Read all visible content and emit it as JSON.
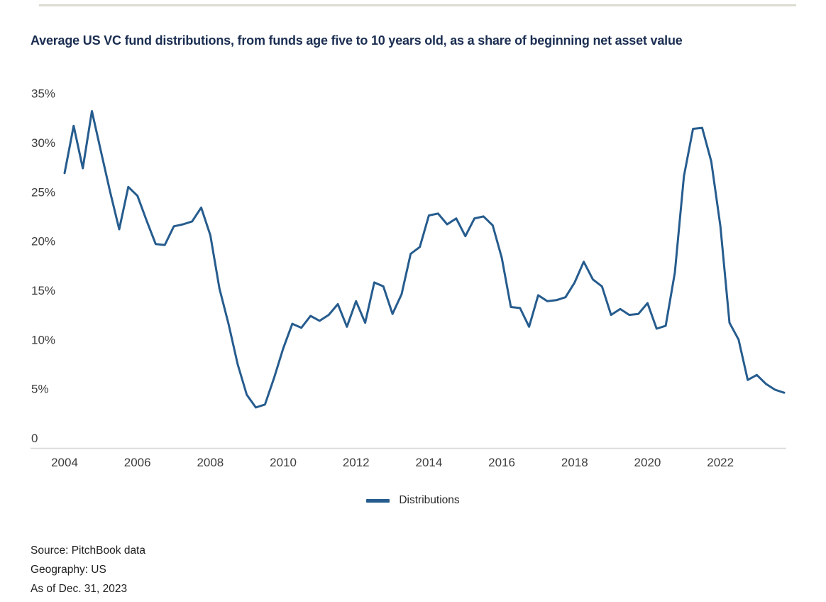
{
  "title": {
    "text": "Average US VC fund distributions, from funds age five to 10 years old, as a share of beginning net asset value"
  },
  "legend": {
    "label": "Distributions"
  },
  "footer": {
    "source": "Source: PitchBook data",
    "geography": "Geography: US",
    "as_of": "As of Dec. 31, 2023"
  },
  "colors": {
    "line": "#265c8e",
    "title_text": "#1b2e52",
    "axis_text": "#3d3d3d",
    "baseline": "#d8d8d8",
    "top_rule": "#dcdcd2"
  },
  "chart_data": {
    "type": "line",
    "title": "Average US VC fund distributions, from funds age five to 10 years old, as a share of beginning net asset value",
    "xlabel": "",
    "ylabel": "",
    "unit": "%",
    "frequency": "quarterly",
    "xlim": [
      2004.0,
      2023.75
    ],
    "ylim": [
      0,
      35
    ],
    "grid": false,
    "legend_position": "bottom",
    "x_ticks": [
      2004,
      2006,
      2008,
      2010,
      2012,
      2014,
      2016,
      2018,
      2020,
      2022
    ],
    "y_ticks": [
      {
        "value": 35,
        "label": "35%"
      },
      {
        "value": 30,
        "label": "30%"
      },
      {
        "value": 25,
        "label": "25%"
      },
      {
        "value": 20,
        "label": "20%"
      },
      {
        "value": 15,
        "label": "15%"
      },
      {
        "value": 10,
        "label": "10%"
      },
      {
        "value": 5,
        "label": "5%"
      },
      {
        "value": 0,
        "label": "0"
      }
    ],
    "x": [
      2004.0,
      2004.25,
      2004.5,
      2004.75,
      2005.0,
      2005.25,
      2005.5,
      2005.75,
      2006.0,
      2006.25,
      2006.5,
      2006.75,
      2007.0,
      2007.25,
      2007.5,
      2007.75,
      2008.0,
      2008.25,
      2008.5,
      2008.75,
      2009.0,
      2009.25,
      2009.5,
      2009.75,
      2010.0,
      2010.25,
      2010.5,
      2010.75,
      2011.0,
      2011.25,
      2011.5,
      2011.75,
      2012.0,
      2012.25,
      2012.5,
      2012.75,
      2013.0,
      2013.25,
      2013.5,
      2013.75,
      2014.0,
      2014.25,
      2014.5,
      2014.75,
      2015.0,
      2015.25,
      2015.5,
      2015.75,
      2016.0,
      2016.25,
      2016.5,
      2016.75,
      2017.0,
      2017.25,
      2017.5,
      2017.75,
      2018.0,
      2018.25,
      2018.5,
      2018.75,
      2019.0,
      2019.25,
      2019.5,
      2019.75,
      2020.0,
      2020.25,
      2020.5,
      2020.75,
      2021.0,
      2021.25,
      2021.5,
      2021.75,
      2022.0,
      2022.25,
      2022.5,
      2022.75,
      2023.0,
      2023.25,
      2023.5,
      2023.75
    ],
    "series": [
      {
        "name": "Distributions",
        "values": [
          26.9,
          31.7,
          27.4,
          33.2,
          29.1,
          25.0,
          21.2,
          25.5,
          24.6,
          22.1,
          19.7,
          19.6,
          21.5,
          21.7,
          22.0,
          23.4,
          20.6,
          15.2,
          11.6,
          7.5,
          4.4,
          3.1,
          3.4,
          6.1,
          9.1,
          11.6,
          11.2,
          12.4,
          11.9,
          12.5,
          13.6,
          11.3,
          13.9,
          11.7,
          15.8,
          15.4,
          12.6,
          14.6,
          18.7,
          19.4,
          22.6,
          22.8,
          21.7,
          22.3,
          20.5,
          22.3,
          22.5,
          21.6,
          18.3,
          13.3,
          13.2,
          11.3,
          14.5,
          13.9,
          14.0,
          14.3,
          15.8,
          17.9,
          16.1,
          15.4,
          12.5,
          13.1,
          12.5,
          12.6,
          13.7,
          11.1,
          11.4,
          16.8,
          26.6,
          31.4,
          31.5,
          28.1,
          21.5,
          11.7,
          10.0,
          5.9,
          6.4,
          5.5,
          4.9,
          4.6
        ]
      }
    ]
  }
}
